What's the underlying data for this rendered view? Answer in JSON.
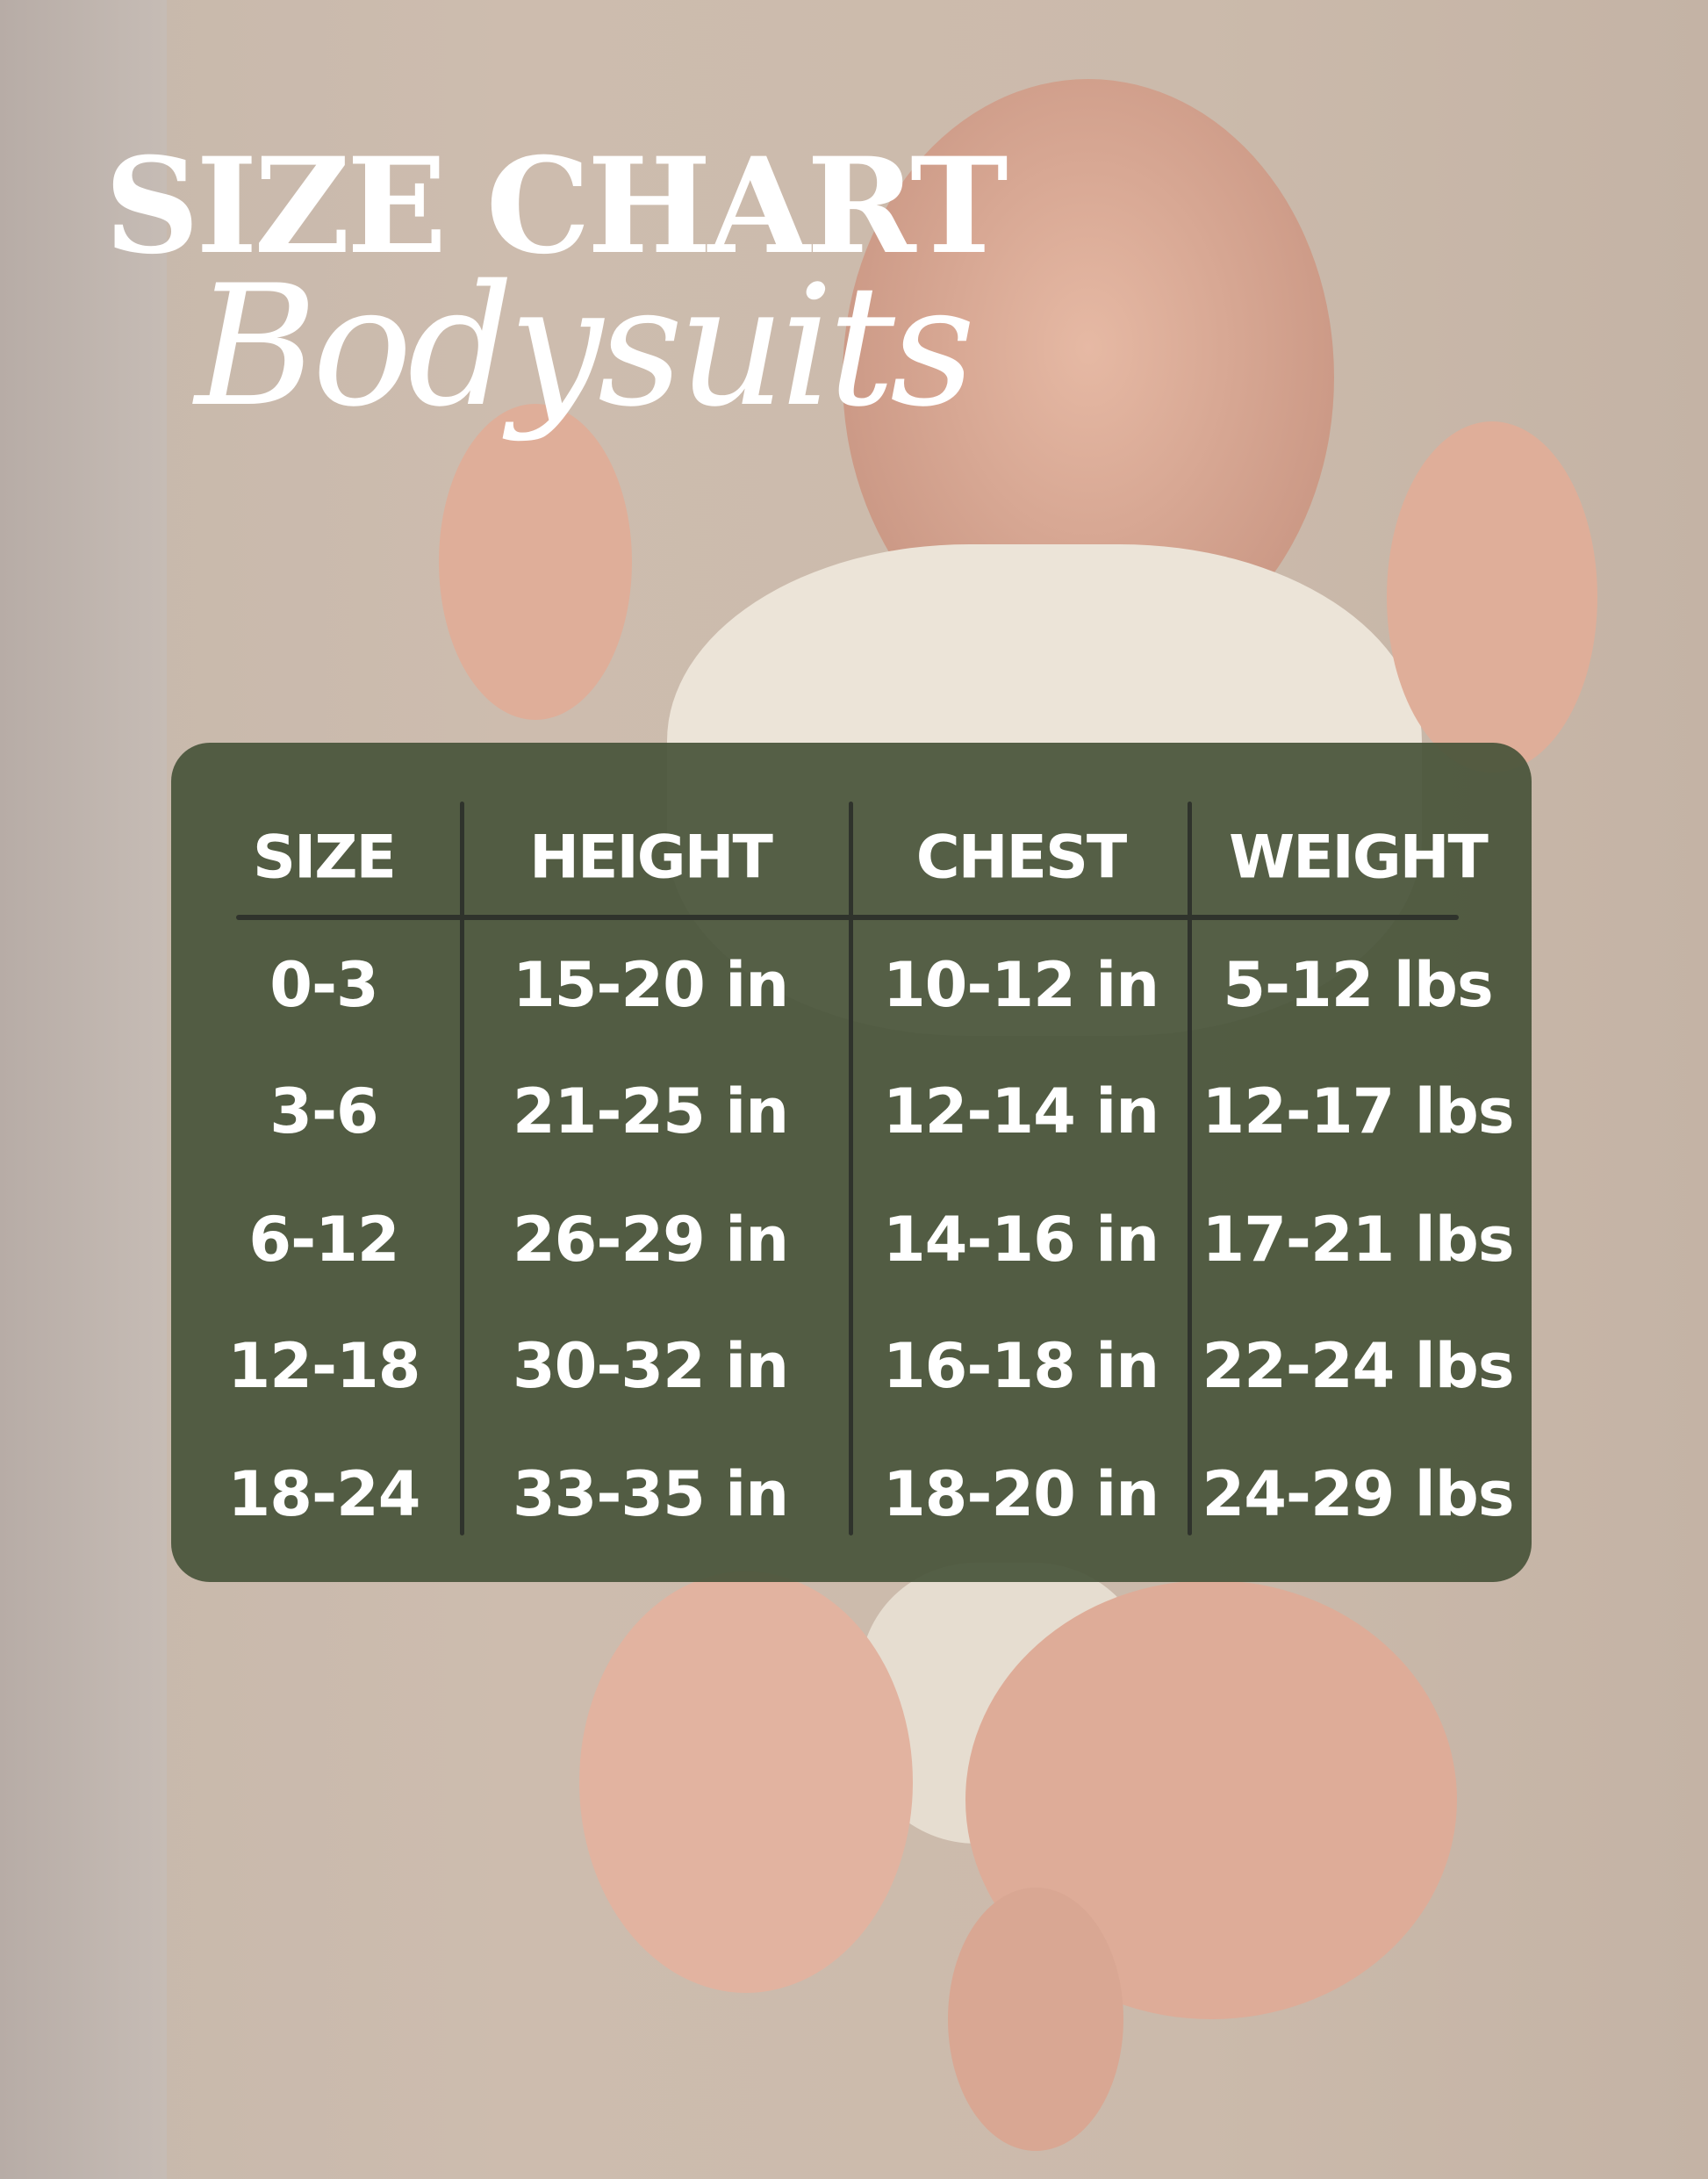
{
  "title": "SIZE CHART",
  "subtitle": "Bodysuits",
  "colors": {
    "panel": "#505a44",
    "text": "#ffffff",
    "divider": "#2f332c"
  },
  "chart_data": {
    "type": "table",
    "columns": [
      "SIZE",
      "HEIGHT",
      "CHEST",
      "WEIGHT"
    ],
    "rows": [
      [
        "0-3",
        "15-20 in",
        "10-12 in",
        "5-12 lbs"
      ],
      [
        "3-6",
        "21-25 in",
        "12-14 in",
        "12-17 lbs"
      ],
      [
        "6-12",
        "26-29 in",
        "14-16 in",
        "17-21 lbs"
      ],
      [
        "12-18",
        "30-32 in",
        "16-18 in",
        "22-24 lbs"
      ],
      [
        "18-24",
        "33-35 in",
        "18-20 in",
        "24-29 lbs"
      ]
    ]
  }
}
